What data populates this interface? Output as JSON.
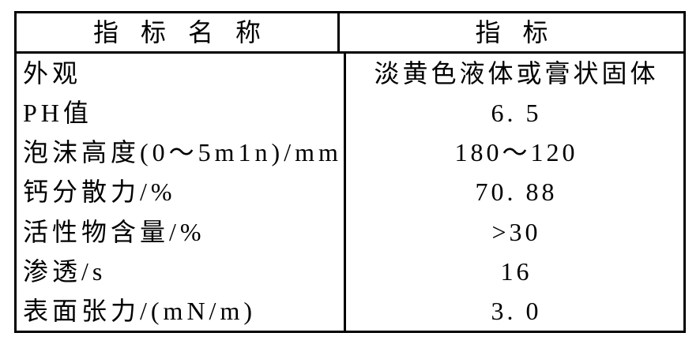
{
  "table": {
    "border_color": "#000000",
    "background_color": "#ffffff",
    "text_color": "#000000",
    "columns": [
      {
        "label": "指标名称"
      },
      {
        "label": "指标"
      }
    ],
    "rows": [
      {
        "name": "外观",
        "value": "淡黄色液体或膏状固体"
      },
      {
        "name": "PH值",
        "value": "6. 5"
      },
      {
        "name": "泡沫高度(0～5m1n)/mm",
        "value": "180～120"
      },
      {
        "name": "钙分散力/%",
        "value": "70. 88"
      },
      {
        "name": "活性物含量/%",
        "value": ">30"
      },
      {
        "name": "渗透/s",
        "value": "16"
      },
      {
        "name": "表面张力/(mN/m)",
        "value": "3. 0"
      }
    ]
  }
}
